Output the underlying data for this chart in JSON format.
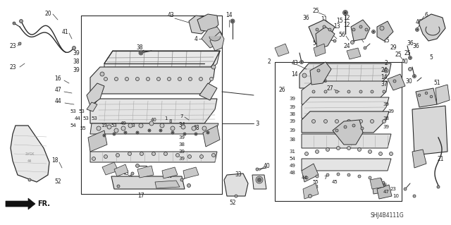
{
  "bg": "#ffffff",
  "fg": "#1a1a1a",
  "diagram_code": "SHJ4B4111G",
  "arrow_label": "FR.",
  "fig_width": 6.4,
  "fig_height": 3.19,
  "dpi": 100,
  "lc": "#2a2a2a",
  "gray1": "#c8c8c8",
  "gray2": "#e0e0e0",
  "gray3": "#b0b0b0"
}
